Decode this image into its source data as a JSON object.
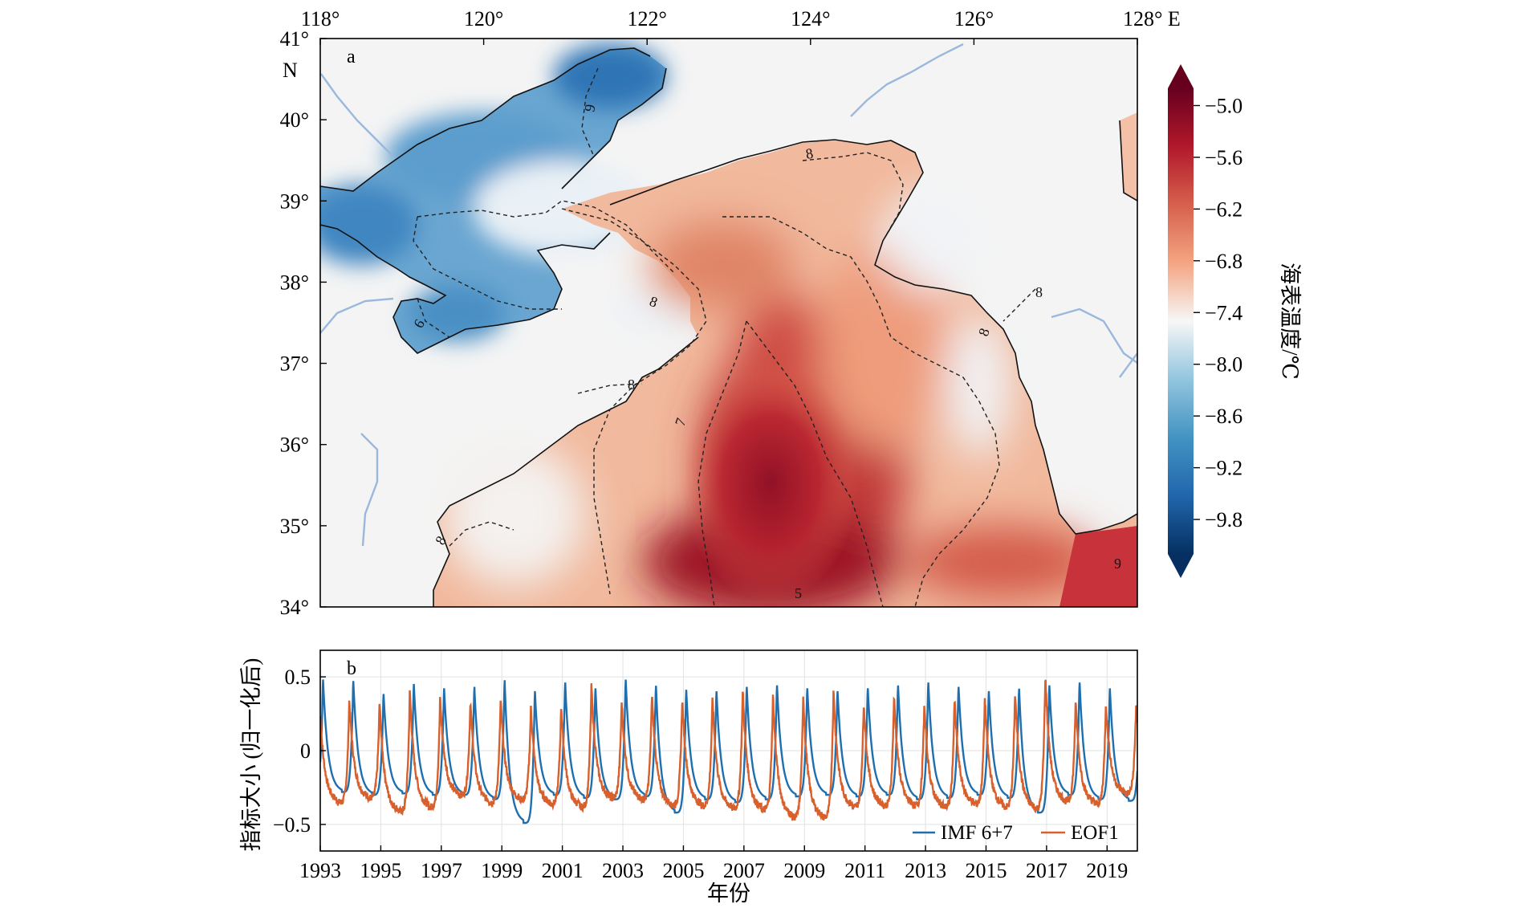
{
  "chart_data": [
    {
      "panel": "a",
      "type": "heatmap",
      "x_ticks": [
        "118°",
        "120°",
        "122°",
        "124°",
        "126°",
        "128° E"
      ],
      "y_ticks": [
        "41°",
        "40°",
        "39°",
        "38°",
        "37°",
        "36°",
        "35°",
        "34°"
      ],
      "y_unit": "N",
      "xlim": [
        118,
        128
      ],
      "ylim": [
        34,
        41
      ],
      "colorbar": {
        "label": "海表温度/℃",
        "ticks": [
          "−5.0",
          "−5.6",
          "−6.2",
          "−6.8",
          "−7.4",
          "−8.0",
          "−8.6",
          "−9.2",
          "−9.8"
        ],
        "range": [
          -10.2,
          -4.8
        ],
        "extend": "both",
        "colormap": [
          "#67001f",
          "#b2182b",
          "#d6604d",
          "#f4a582",
          "#f7f7f7",
          "#92c5de",
          "#4393c3",
          "#2166ac",
          "#053061"
        ]
      },
      "contour_labels": [
        "9",
        "8",
        "6",
        "8",
        "8",
        "8",
        "7",
        "8",
        "8",
        "9",
        "5"
      ],
      "land_color": "#f4f4f4",
      "river_color": "#9ab8dd"
    },
    {
      "panel": "b",
      "type": "line",
      "x_ticks": [
        "1993",
        "1995",
        "1997",
        "1999",
        "2001",
        "2003",
        "2005",
        "2007",
        "2009",
        "2011",
        "2013",
        "2015",
        "2017",
        "2019"
      ],
      "y_ticks": [
        "0.5",
        "0",
        "−0.5"
      ],
      "xlabel": "年份",
      "ylabel": "指标大小 (归一化后)",
      "xlim": [
        1993.0,
        2020.0
      ],
      "ylim": [
        -0.68,
        0.68
      ],
      "grid": true,
      "legend_position": "bottom-right",
      "x": [
        1993.0,
        1994.0,
        1995.0,
        1996.0,
        1997.0,
        1998.0,
        1999.0,
        2000.0,
        2001.0,
        2002.0,
        2003.0,
        2004.0,
        2005.0,
        2006.0,
        2007.0,
        2008.0,
        2009.0,
        2010.0,
        2011.0,
        2012.0,
        2013.0,
        2014.0,
        2015.0,
        2016.0,
        2017.0,
        2018.0,
        2019.0
      ],
      "series": [
        {
          "name": "IMF 6+7",
          "color": "#1f6fae",
          "peak_offset_yr": 0.09,
          "peak_values": [
            0.5,
            0.49,
            0.4,
            0.47,
            0.44,
            0.45,
            0.5,
            0.42,
            0.48,
            0.44,
            0.5,
            0.46,
            0.43,
            0.42,
            0.45,
            0.46,
            0.44,
            0.42,
            0.44,
            0.46,
            0.48,
            0.45,
            0.42,
            0.44,
            0.46,
            0.48,
            0.44
          ],
          "trough_values": [
            -0.28,
            -0.3,
            -0.29,
            -0.3,
            -0.3,
            -0.33,
            -0.49,
            -0.3,
            -0.32,
            -0.33,
            -0.31,
            -0.42,
            -0.33,
            -0.35,
            -0.33,
            -0.31,
            -0.3,
            -0.31,
            -0.3,
            -0.33,
            -0.32,
            -0.3,
            -0.32,
            -0.42,
            -0.3,
            -0.33,
            -0.34
          ]
        },
        {
          "name": "EOF1",
          "color": "#d8602c",
          "peak_offset_yr": 0.96,
          "peak_values": [
            0.4,
            0.35,
            0.33,
            0.41,
            0.36,
            0.34,
            0.35,
            0.3,
            0.31,
            0.45,
            0.34,
            0.39,
            0.35,
            0.36,
            0.41,
            0.38,
            0.37,
            0.41,
            0.32,
            0.37,
            0.31,
            0.35,
            0.36,
            0.4,
            0.51,
            0.33,
            0.32
          ],
          "trough_values": [
            -0.35,
            -0.32,
            -0.41,
            -0.38,
            -0.3,
            -0.35,
            -0.33,
            -0.36,
            -0.38,
            -0.32,
            -0.33,
            -0.37,
            -0.37,
            -0.39,
            -0.4,
            -0.45,
            -0.45,
            -0.38,
            -0.37,
            -0.37,
            -0.38,
            -0.36,
            -0.38,
            -0.39,
            -0.34,
            -0.36,
            -0.29
          ]
        }
      ]
    }
  ]
}
